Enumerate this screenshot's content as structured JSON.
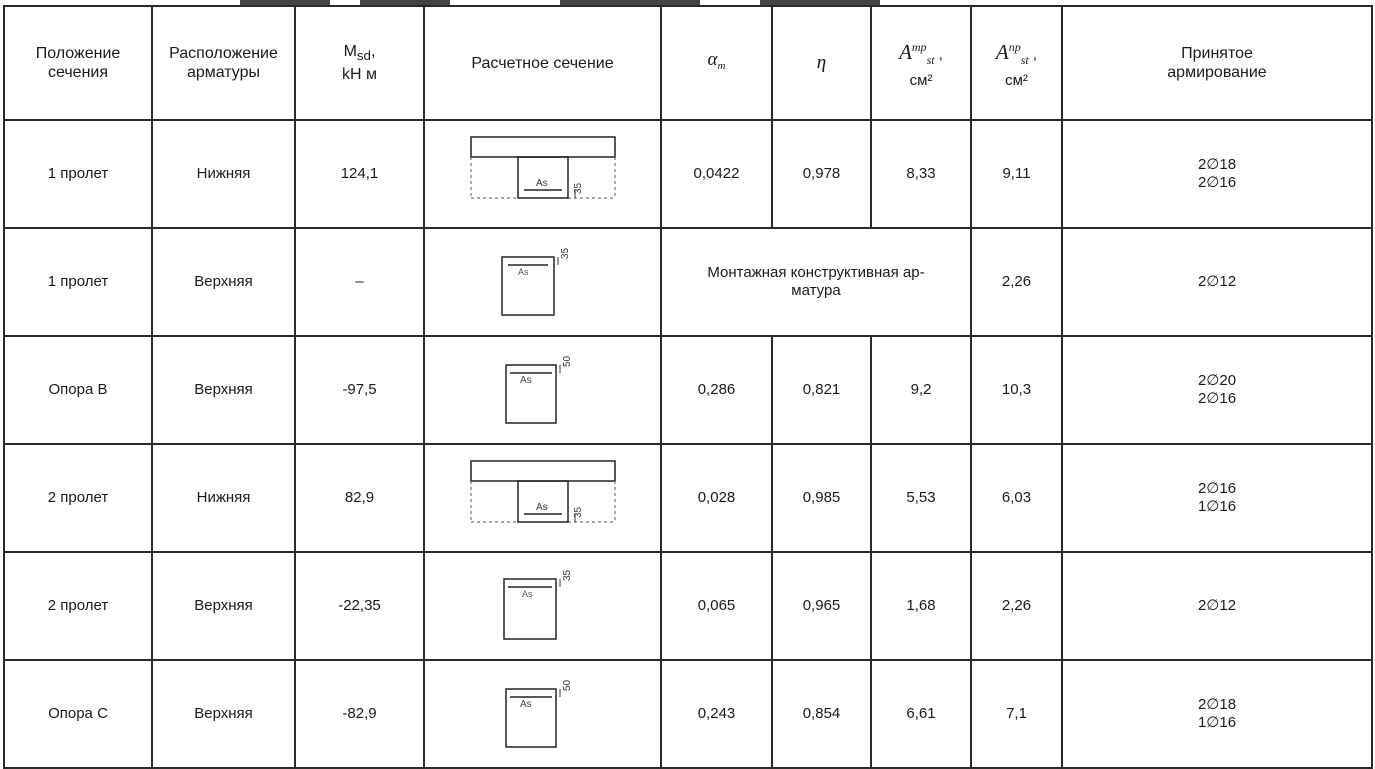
{
  "headers": {
    "position": "Положение\nсечения",
    "placement": "Расположение\nарматуры",
    "moment_main": "M",
    "moment_sub": "sd",
    "moment_unit": "kH м",
    "section": "Расчетное сечение",
    "alpha": "α",
    "alpha_sub": "m",
    "eta": "η",
    "areq_letter": "A",
    "areq_sup": "mp",
    "areq_sub": "st",
    "areq_unit": "см²",
    "aprov_letter": "A",
    "aprov_sup": "пр",
    "aprov_sub": "st",
    "aprov_unit": "см²",
    "adopted": "Принятое\nармирование"
  },
  "rows": [
    {
      "position": "1 пролет",
      "placement": "Нижняя",
      "moment": "124,1",
      "section_label": "As",
      "cover": "35",
      "alpha": "0,0422",
      "eta": "0,978",
      "areq": "8,33",
      "aprov": "9,11",
      "rebar": "2∅18\n2∅16"
    },
    {
      "position": "1 пролет",
      "placement": "Верхняя",
      "moment": "–",
      "section_label": "As",
      "cover": "35",
      "merged_note": "Монтажная конструктивная ар-\nматура",
      "aprov": "2,26",
      "rebar": "2∅12"
    },
    {
      "position": "Опора В",
      "placement": "Верхняя",
      "moment": "-97,5",
      "section_label": "As",
      "cover": "50",
      "alpha": "0,286",
      "eta": "0,821",
      "areq": "9,2",
      "aprov": "10,3",
      "rebar": "2∅20\n2∅16"
    },
    {
      "position": "2 пролет",
      "placement": "Нижняя",
      "moment": "82,9",
      "section_label": "As",
      "cover": "35",
      "alpha": "0,028",
      "eta": "0,985",
      "areq": "5,53",
      "aprov": "6,03",
      "rebar": "2∅16\n1∅16"
    },
    {
      "position": "2 пролет",
      "placement": "Верхняя",
      "moment": "-22,35",
      "section_label": "As",
      "cover": "35",
      "alpha": "0,065",
      "eta": "0,965",
      "areq": "1,68",
      "aprov": "2,26",
      "rebar": "2∅12"
    },
    {
      "position": "Опора С",
      "placement": "Верхняя",
      "moment": "-82,9",
      "section_label": "As",
      "cover": "50",
      "alpha": "0,243",
      "eta": "0,854",
      "areq": "6,61",
      "aprov": "7,1",
      "rebar": "2∅18\n1∅16"
    }
  ]
}
